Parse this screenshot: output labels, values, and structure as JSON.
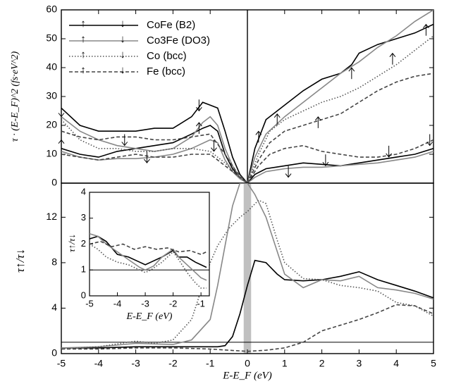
{
  "chart_data": [
    {
      "type": "line",
      "panel": "top",
      "ylabel": "τ · (E-E_F)^2 (fs·eV^2)",
      "ylim": [
        0,
        60
      ],
      "xlim": [
        -5,
        5
      ],
      "yticks": [
        0,
        10,
        20,
        30,
        40,
        50,
        60
      ],
      "legend_position": "top-left",
      "legend": [
        {
          "label": "CoFe (B2)",
          "color": "#000000",
          "dash": "solid",
          "up": "↑",
          "down": "↓"
        },
        {
          "label": "Co3Fe (DO3)",
          "color": "#888888",
          "dash": "solid",
          "up": "↑",
          "down": "↓"
        },
        {
          "label": "Co (bcc)",
          "color": "#555555",
          "dash": "dotted",
          "up": "↑",
          "down": "↓"
        },
        {
          "label": "Fe (bcc)",
          "color": "#444444",
          "dash": "dashed",
          "up": "↑",
          "down": "↓"
        }
      ],
      "series": [
        {
          "name": "CoFe (B2) ↑",
          "color": "#000000",
          "dash": "solid",
          "x": [
            -5,
            -4.5,
            -4,
            -3.5,
            -3,
            -2.5,
            -2,
            -1.5,
            -1.2,
            -1,
            -0.8,
            -0.6,
            -0.4,
            -0.2,
            0
          ],
          "y": [
            12,
            10,
            9,
            11,
            12,
            13,
            14,
            17,
            19,
            20,
            18,
            10,
            5,
            2,
            0
          ]
        },
        {
          "name": "CoFe (B2) ↓",
          "color": "#000000",
          "dash": "solid",
          "x": [
            -5,
            -4.5,
            -4,
            -3.5,
            -3,
            -2.5,
            -2,
            -1.5,
            -1.2,
            -1,
            -0.8,
            -0.6,
            -0.4,
            -0.2,
            0
          ],
          "y": [
            26,
            20,
            18,
            18,
            18,
            19,
            19,
            23,
            28,
            27,
            26,
            18,
            9,
            3,
            0
          ]
        },
        {
          "name": "CoFe (B2) ↑ (E>0)",
          "color": "#000000",
          "dash": "solid",
          "x": [
            0,
            0.2,
            0.5,
            1,
            1.5,
            2,
            2.5,
            2.8,
            3,
            3.5,
            4,
            4.5,
            5
          ],
          "y": [
            0,
            12,
            22,
            27,
            32,
            36,
            38,
            41,
            45,
            48,
            50,
            52,
            55
          ]
        },
        {
          "name": "CoFe (B2) ↓ (E>0)",
          "color": "#000000",
          "dash": "solid",
          "x": [
            0,
            0.2,
            0.5,
            1,
            1.5,
            2,
            2.5,
            3,
            3.5,
            4,
            4.5,
            5
          ],
          "y": [
            0,
            3,
            5,
            6,
            7,
            6.5,
            6,
            7,
            8,
            9,
            10,
            12
          ]
        },
        {
          "name": "Co3Fe (DO3) ↑",
          "color": "#888888",
          "dash": "solid",
          "x": [
            -5,
            -4.5,
            -4,
            -3.5,
            -3,
            -2.5,
            -2,
            -1.5,
            -1,
            -0.8,
            -0.6,
            -0.4,
            -0.2,
            0
          ],
          "y": [
            11,
            9,
            8,
            8.5,
            8.5,
            9,
            10,
            12,
            15,
            14,
            8,
            4,
            1.5,
            0
          ]
        },
        {
          "name": "Co3Fe (DO3) ↓",
          "color": "#888888",
          "dash": "solid",
          "x": [
            -5,
            -4.5,
            -4,
            -3.5,
            -3,
            -2.5,
            -2,
            -1.5,
            -1.2,
            -1,
            -0.8,
            -0.6,
            -0.4,
            -0.2,
            0
          ],
          "y": [
            23,
            18,
            15,
            13,
            12,
            11,
            12,
            16,
            21,
            23,
            20,
            12,
            6,
            2,
            0
          ]
        },
        {
          "name": "Co3Fe (DO3) ↑ (E>0)",
          "color": "#888888",
          "dash": "solid",
          "x": [
            0,
            0.2,
            0.5,
            1,
            1.5,
            2,
            2.5,
            3,
            3.5,
            4,
            4.5,
            5
          ],
          "y": [
            0,
            9,
            17,
            23,
            28,
            33,
            38,
            42,
            47,
            51,
            56,
            60
          ]
        },
        {
          "name": "Co3Fe (DO3) ↓ (E>0)",
          "color": "#888888",
          "dash": "solid",
          "x": [
            0,
            0.2,
            0.5,
            1,
            1.5,
            2,
            2.5,
            3,
            3.5,
            4,
            4.5,
            5
          ],
          "y": [
            0,
            2,
            4,
            5,
            5.5,
            5.5,
            6,
            6.5,
            7,
            8,
            9,
            11
          ]
        },
        {
          "name": "Co (bcc) ↑",
          "color": "#555555",
          "dash": "dotted",
          "x": [
            -5,
            -4.5,
            -4,
            -3.5,
            -3,
            -2.5,
            -2,
            -1.5,
            -1,
            -0.6,
            -0.3,
            0
          ],
          "y": [
            22,
            15,
            12,
            12,
            11,
            11,
            12,
            12,
            11,
            7,
            3,
            0
          ]
        },
        {
          "name": "Co (bcc) ↑ (E>0)",
          "color": "#555555",
          "dash": "dotted",
          "x": [
            0,
            0.3,
            0.6,
            1,
            1.5,
            2,
            2.5,
            3,
            3.5,
            4,
            4.5,
            5
          ],
          "y": [
            0,
            10,
            18,
            22,
            25,
            28,
            30,
            33,
            37,
            41,
            46,
            51
          ]
        },
        {
          "name": "Fe (bcc) ↑",
          "color": "#444444",
          "dash": "dashed",
          "x": [
            -5,
            -4.5,
            -4,
            -3.5,
            -3,
            -2.5,
            -2,
            -1.5,
            -1,
            -0.6,
            -0.3,
            0
          ],
          "y": [
            10,
            9,
            8,
            9,
            10,
            9,
            9,
            10,
            10,
            6,
            3,
            0
          ]
        },
        {
          "name": "Fe (bcc) ↓",
          "color": "#444444",
          "dash": "dashed",
          "x": [
            -5,
            -4.5,
            -4,
            -3.5,
            -3,
            -2.5,
            -2,
            -1.5,
            -1,
            -0.6,
            -0.3,
            0
          ],
          "y": [
            18,
            16,
            15,
            16,
            16,
            15,
            15,
            16,
            17,
            10,
            4,
            0
          ]
        },
        {
          "name": "Fe (bcc) ↑ (E>0)",
          "color": "#444444",
          "dash": "dashed",
          "x": [
            0,
            0.3,
            0.6,
            1,
            1.5,
            2,
            2.5,
            3,
            3.5,
            4,
            4.5,
            5
          ],
          "y": [
            0,
            8,
            14,
            18,
            20,
            22,
            24,
            28,
            32,
            35,
            37,
            38
          ]
        },
        {
          "name": "Fe (bcc) ↓ (E>0)",
          "color": "#444444",
          "dash": "dashed",
          "x": [
            0,
            0.3,
            0.6,
            1,
            1.5,
            2,
            2.5,
            3,
            3.5,
            4,
            4.5,
            5
          ],
          "y": [
            0,
            6,
            10,
            12,
            13,
            11,
            10,
            9,
            9,
            10,
            12,
            15
          ]
        }
      ],
      "spin_arrows": [
        {
          "x": -5,
          "y": 25,
          "dir": "down"
        },
        {
          "x": -5,
          "y": 13,
          "dir": "up"
        },
        {
          "x": -3.3,
          "y": 15,
          "dir": "down"
        },
        {
          "x": -2.7,
          "y": 9,
          "dir": "down"
        },
        {
          "x": -1.3,
          "y": 27,
          "dir": "down"
        },
        {
          "x": -1.3,
          "y": 19,
          "dir": "up"
        },
        {
          "x": -0.9,
          "y": 13,
          "dir": "down"
        },
        {
          "x": 0.3,
          "y": 16,
          "dir": "up"
        },
        {
          "x": 0.8,
          "y": 22,
          "dir": "up"
        },
        {
          "x": 1.9,
          "y": 21,
          "dir": "up"
        },
        {
          "x": 2.8,
          "y": 38,
          "dir": "up"
        },
        {
          "x": 3.9,
          "y": 43,
          "dir": "up"
        },
        {
          "x": 4.8,
          "y": 53,
          "dir": "up"
        },
        {
          "x": 1.1,
          "y": 4,
          "dir": "down"
        },
        {
          "x": 2.1,
          "y": 8,
          "dir": "down"
        },
        {
          "x": 3.8,
          "y": 11,
          "dir": "down"
        },
        {
          "x": 4.9,
          "y": 15,
          "dir": "down"
        }
      ]
    },
    {
      "type": "line",
      "panel": "bottom",
      "xlabel": "E-E_F (eV)",
      "ylabel": "τ↑/τ↓",
      "xlim": [
        -5,
        5
      ],
      "ylim": [
        0,
        15
      ],
      "xticks": [
        -5,
        -4,
        -3,
        -2,
        -1,
        0,
        1,
        2,
        3,
        4,
        5
      ],
      "yticks": [
        0,
        4,
        8,
        12
      ],
      "reference_line_y": 1,
      "shaded_band_x": [
        -0.1,
        0.1
      ],
      "series": [
        {
          "name": "CoFe (B2)",
          "color": "#000000",
          "dash": "solid",
          "x": [
            -5,
            -4,
            -3,
            -2,
            -1,
            -0.8,
            -0.6,
            -0.4,
            -0.2,
            0,
            0.2,
            0.5,
            0.8,
            1,
            1.5,
            2,
            2.5,
            3,
            3.5,
            4,
            4.5,
            5
          ],
          "y": [
            0.5,
            0.5,
            0.6,
            0.6,
            0.6,
            0.6,
            0.7,
            1.5,
            3.5,
            6,
            8.2,
            8,
            7,
            6.5,
            6.4,
            6.5,
            6.8,
            7.2,
            6.5,
            6,
            5.5,
            4.9
          ]
        },
        {
          "name": "Co3Fe (DO3)",
          "color": "#888888",
          "dash": "solid",
          "x": [
            -5,
            -4,
            -3,
            -2,
            -1.5,
            -1,
            -0.8,
            -0.6,
            -0.4,
            -0.2,
            0,
            0.2,
            0.5,
            0.8,
            1,
            1.5,
            2,
            2.5,
            3,
            3.5,
            4,
            4.5,
            5
          ],
          "y": [
            0.5,
            0.6,
            0.9,
            0.8,
            1.2,
            3,
            6,
            9.5,
            13,
            15,
            15,
            14,
            12,
            9,
            7,
            5.8,
            6.5,
            6.4,
            6.8,
            5.8,
            5.6,
            5.3,
            4.8
          ]
        },
        {
          "name": "Co (bcc)",
          "color": "#555555",
          "dash": "dotted",
          "x": [
            -5,
            -4,
            -3,
            -2.5,
            -2,
            -1.5,
            -1.2,
            -1,
            -0.8,
            -0.5,
            -0.2,
            0,
            0.3,
            0.5,
            0.8,
            1,
            1.5,
            2,
            2.5,
            3,
            3.5,
            4,
            4.5,
            5
          ],
          "y": [
            0.4,
            0.6,
            1.1,
            0.9,
            1.2,
            3,
            6,
            8,
            9.5,
            11,
            12,
            12.5,
            13.5,
            13.2,
            10,
            8,
            6.6,
            6.5,
            6,
            5.8,
            5.5,
            4.5,
            4.2,
            3.3
          ]
        },
        {
          "name": "Fe (bcc)",
          "color": "#444444",
          "dash": "dashed",
          "x": [
            -5,
            -4,
            -3,
            -2,
            -1,
            -0.5,
            0,
            0.5,
            1,
            1.5,
            2,
            2.5,
            3,
            3.5,
            4,
            4.5,
            5
          ],
          "y": [
            0.4,
            0.4,
            0.5,
            0.5,
            0.4,
            0.3,
            0.2,
            0.3,
            0.5,
            1,
            2,
            2.5,
            3,
            3.6,
            4.3,
            4.2,
            3.5
          ]
        }
      ]
    },
    {
      "type": "line",
      "panel": "inset",
      "xlabel": "E-E_F (eV)",
      "ylabel": "τ↑/τ↓",
      "xlim": [
        -5,
        -0.7
      ],
      "ylim": [
        0,
        4
      ],
      "xticks": [
        -5,
        -4,
        -3,
        -2,
        -1
      ],
      "yticks": [
        0,
        1,
        2,
        3,
        4
      ],
      "reference_line_y": 1,
      "series": [
        {
          "name": "CoFe (B2)",
          "color": "#000000",
          "dash": "solid",
          "x": [
            -5,
            -4.7,
            -4.4,
            -4,
            -3.6,
            -3.2,
            -3,
            -2.8,
            -2.4,
            -2,
            -1.8,
            -1.5,
            -1.2,
            -1,
            -0.8
          ],
          "y": [
            2.2,
            2.3,
            2.1,
            1.6,
            1.5,
            1.3,
            1.2,
            1.3,
            1.5,
            1.75,
            1.5,
            1.5,
            1.3,
            1.2,
            1.1
          ]
        },
        {
          "name": "Co3Fe (DO3)",
          "color": "#888888",
          "dash": "solid",
          "x": [
            -5,
            -4.7,
            -4.4,
            -4,
            -3.6,
            -3.2,
            -3,
            -2.7,
            -2.4,
            -2,
            -1.8,
            -1.5,
            -1.2,
            -1,
            -0.8
          ],
          "y": [
            2.4,
            2.3,
            2.0,
            1.7,
            1.4,
            1.1,
            1.0,
            1.15,
            1.5,
            1.8,
            1.5,
            1.2,
            0.9,
            0.7,
            0.6
          ]
        },
        {
          "name": "Co (bcc)",
          "color": "#555555",
          "dash": "dotted",
          "x": [
            -5,
            -4.7,
            -4.4,
            -4,
            -3.6,
            -3.2,
            -3,
            -2.8,
            -2.4,
            -2,
            -1.8,
            -1.5,
            -1.2,
            -1,
            -0.8
          ],
          "y": [
            2.0,
            1.8,
            1.5,
            1.3,
            1.2,
            1.0,
            0.9,
            1.0,
            1.3,
            1.7,
            1.4,
            0.9,
            0.5,
            0.3,
            0.3
          ]
        },
        {
          "name": "Fe (bcc)",
          "color": "#444444",
          "dash": "dashed",
          "x": [
            -5,
            -4.6,
            -4.2,
            -3.8,
            -3.4,
            -3,
            -2.6,
            -2.2,
            -1.8,
            -1.4,
            -1,
            -0.8
          ],
          "y": [
            2.0,
            2.1,
            1.9,
            2.0,
            1.8,
            1.9,
            1.8,
            1.85,
            1.7,
            1.75,
            1.6,
            1.7
          ]
        }
      ]
    }
  ]
}
